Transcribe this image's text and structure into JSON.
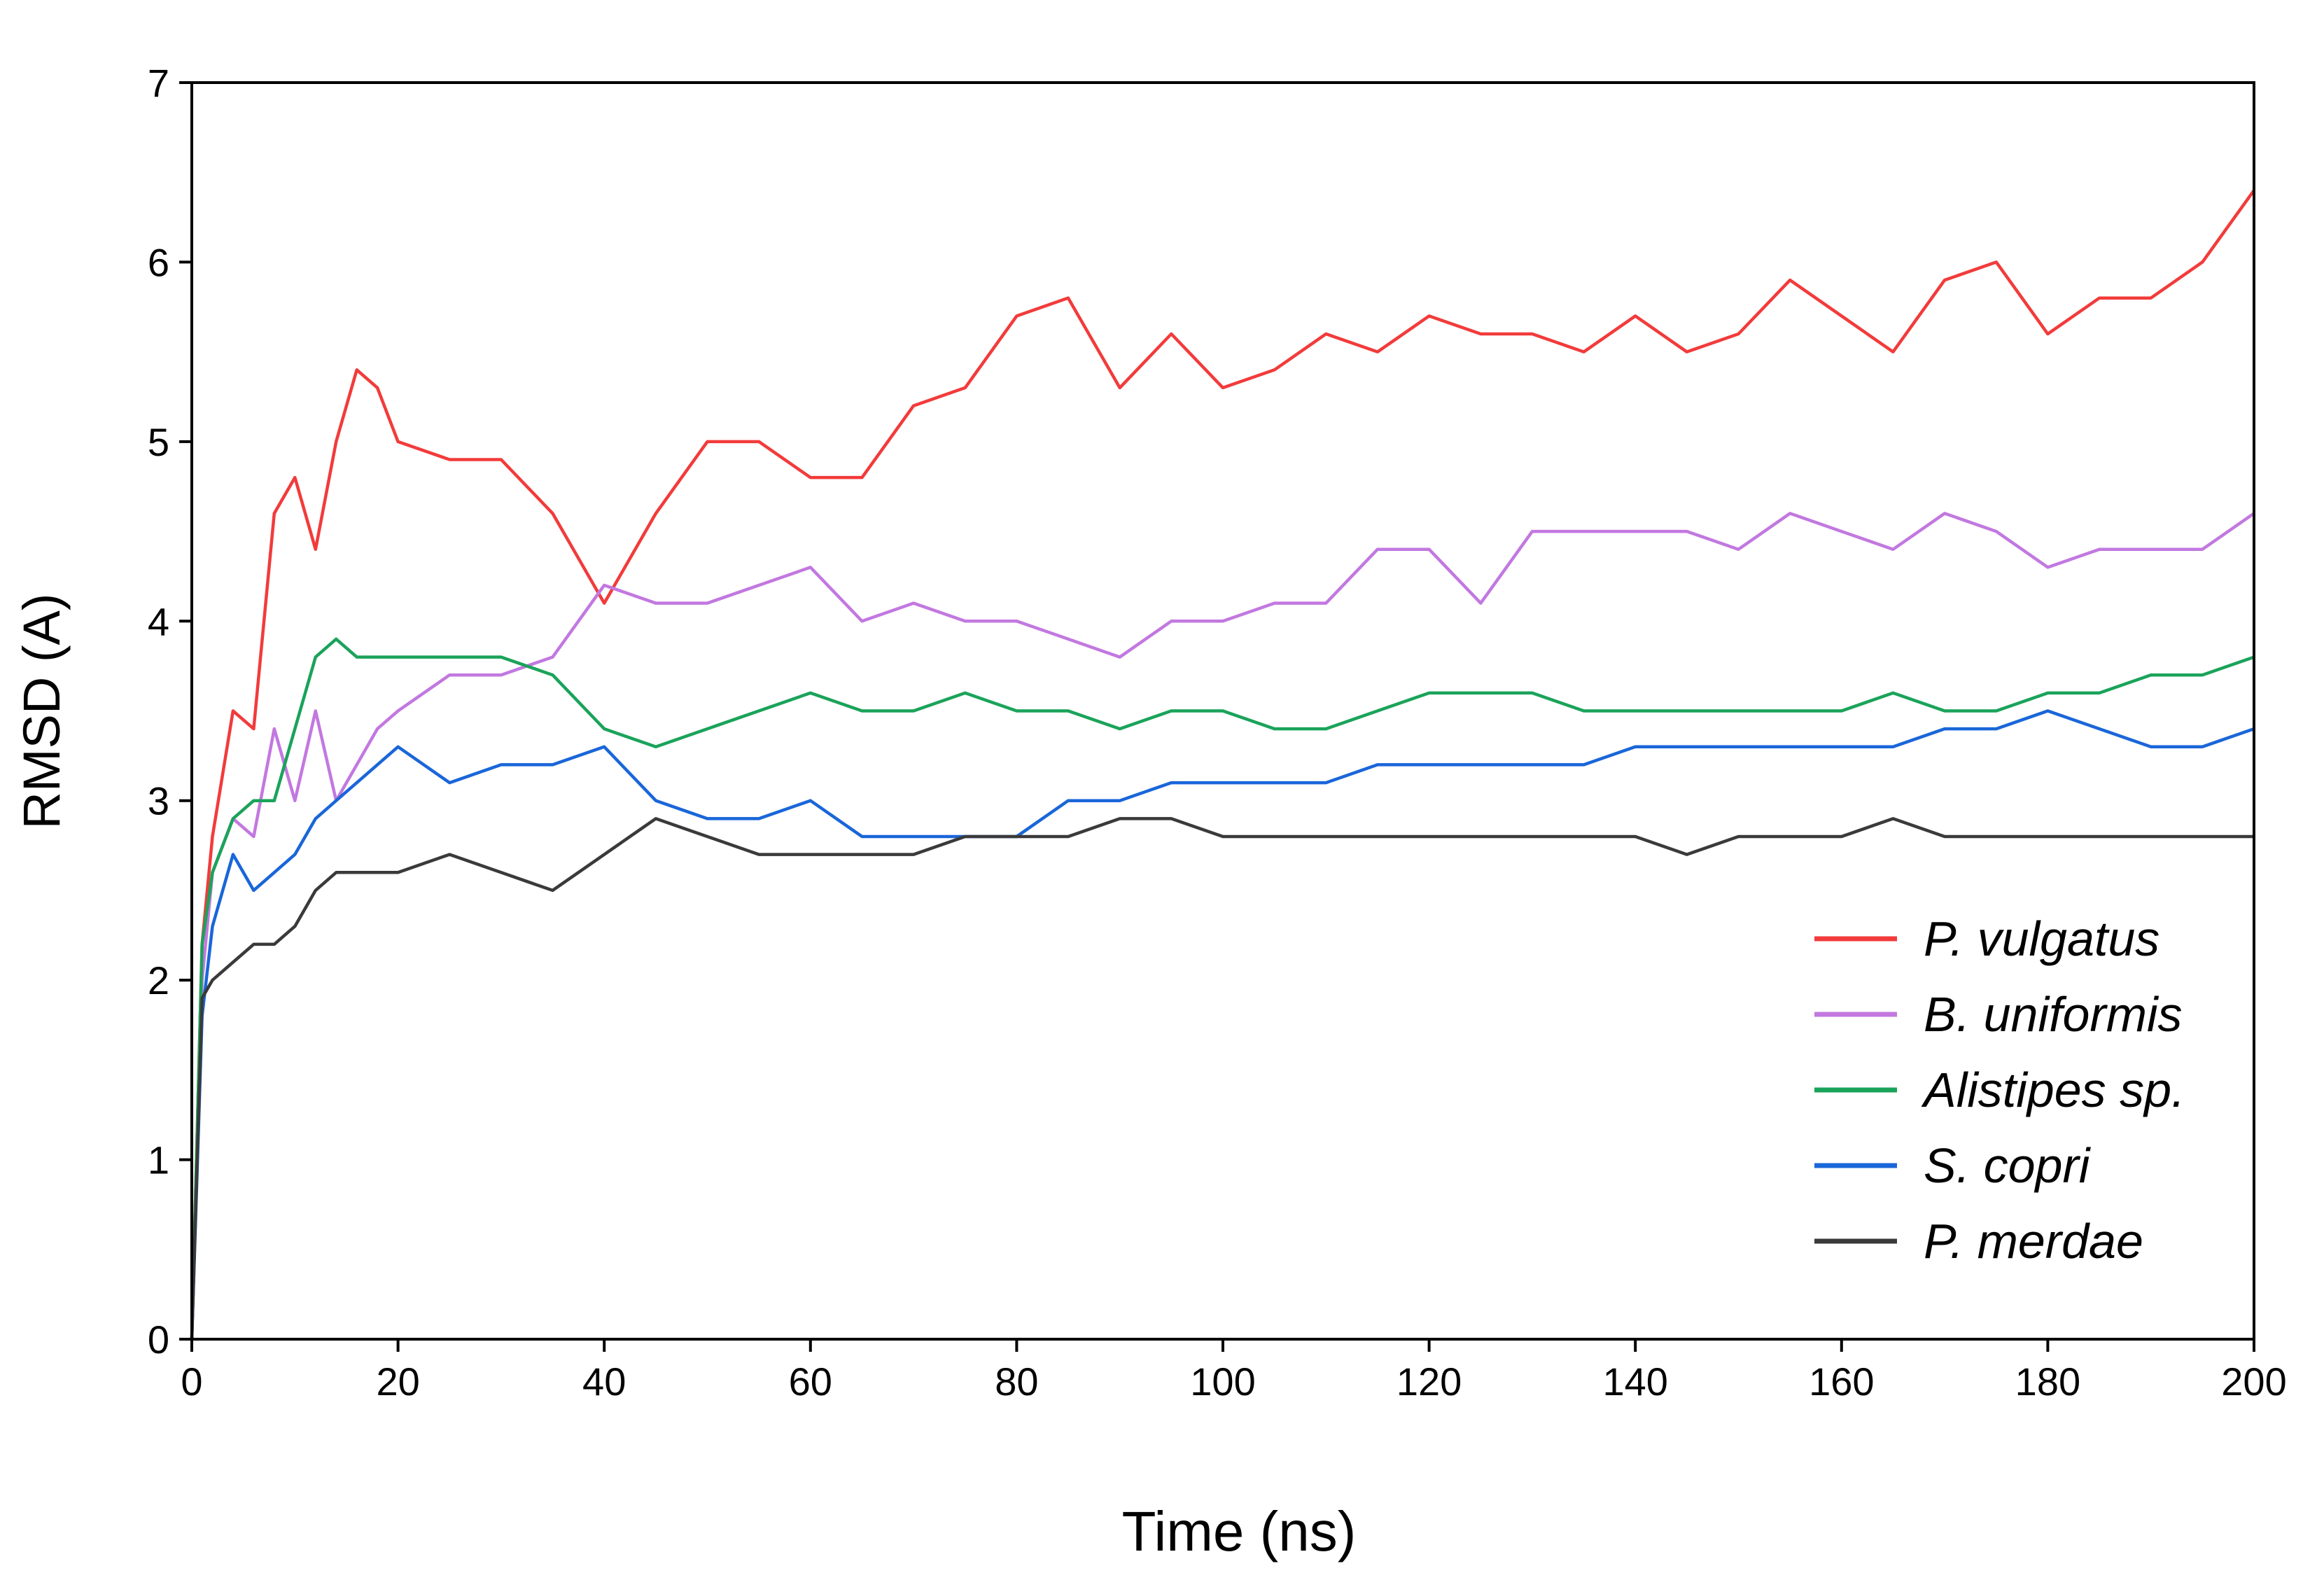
{
  "chart_data": {
    "type": "line",
    "xlabel": "Time (ns)",
    "ylabel": "RMSD (A)",
    "x": [
      0,
      1,
      2,
      4,
      6,
      8,
      10,
      12,
      14,
      16,
      18,
      20,
      25,
      30,
      35,
      40,
      45,
      50,
      55,
      60,
      65,
      70,
      75,
      80,
      85,
      90,
      95,
      100,
      105,
      110,
      115,
      120,
      125,
      130,
      135,
      140,
      145,
      150,
      155,
      160,
      165,
      170,
      175,
      180,
      185,
      190,
      195,
      200
    ],
    "series": [
      {
        "name": "P. vulgatus",
        "color": "#f23b3b",
        "values": [
          0,
          2.2,
          2.8,
          3.5,
          3.4,
          4.6,
          4.8,
          4.4,
          5.0,
          5.4,
          5.3,
          5.0,
          4.9,
          4.9,
          4.6,
          4.1,
          4.6,
          5.0,
          5.0,
          4.8,
          4.8,
          5.2,
          5.3,
          5.7,
          5.8,
          5.3,
          5.6,
          5.3,
          5.4,
          5.6,
          5.5,
          5.7,
          5.6,
          5.6,
          5.5,
          5.7,
          5.5,
          5.6,
          5.9,
          5.7,
          5.5,
          5.9,
          6.0,
          5.6,
          5.8,
          5.8,
          6.0,
          6.4
        ]
      },
      {
        "name": "B. uniformis",
        "color": "#c278e0",
        "values": [
          0,
          2.0,
          2.6,
          2.9,
          2.8,
          3.4,
          3.0,
          3.5,
          3.0,
          3.2,
          3.4,
          3.5,
          3.7,
          3.7,
          3.8,
          4.2,
          4.1,
          4.1,
          4.2,
          4.3,
          4.0,
          4.1,
          4.0,
          4.0,
          3.9,
          3.8,
          4.0,
          4.0,
          4.1,
          4.1,
          4.4,
          4.4,
          4.1,
          4.5,
          4.5,
          4.5,
          4.5,
          4.4,
          4.6,
          4.5,
          4.4,
          4.6,
          4.5,
          4.3,
          4.4,
          4.4,
          4.4,
          4.6
        ]
      },
      {
        "name": "Alistipes sp.",
        "color": "#1aa35a",
        "values": [
          0,
          2.2,
          2.6,
          2.9,
          3.0,
          3.0,
          3.4,
          3.8,
          3.9,
          3.8,
          3.8,
          3.8,
          3.8,
          3.8,
          3.7,
          3.4,
          3.3,
          3.4,
          3.5,
          3.6,
          3.5,
          3.5,
          3.6,
          3.5,
          3.5,
          3.4,
          3.5,
          3.5,
          3.4,
          3.4,
          3.5,
          3.6,
          3.6,
          3.6,
          3.5,
          3.5,
          3.5,
          3.5,
          3.5,
          3.5,
          3.6,
          3.5,
          3.5,
          3.6,
          3.6,
          3.7,
          3.7,
          3.8
        ]
      },
      {
        "name": "S. copri",
        "color": "#1a66d9",
        "values": [
          0,
          1.8,
          2.3,
          2.7,
          2.5,
          2.6,
          2.7,
          2.9,
          3.0,
          3.1,
          3.2,
          3.3,
          3.1,
          3.2,
          3.2,
          3.3,
          3.0,
          2.9,
          2.9,
          3.0,
          2.8,
          2.8,
          2.8,
          2.8,
          3.0,
          3.0,
          3.1,
          3.1,
          3.1,
          3.1,
          3.2,
          3.2,
          3.2,
          3.2,
          3.2,
          3.3,
          3.3,
          3.3,
          3.3,
          3.3,
          3.3,
          3.4,
          3.4,
          3.5,
          3.4,
          3.3,
          3.3,
          3.4
        ]
      },
      {
        "name": "P. merdae",
        "color": "#3a3a3a",
        "values": [
          0,
          1.9,
          2.0,
          2.1,
          2.2,
          2.2,
          2.3,
          2.5,
          2.6,
          2.6,
          2.6,
          2.6,
          2.7,
          2.6,
          2.5,
          2.7,
          2.9,
          2.8,
          2.7,
          2.7,
          2.7,
          2.7,
          2.8,
          2.8,
          2.8,
          2.9,
          2.9,
          2.8,
          2.8,
          2.8,
          2.8,
          2.8,
          2.8,
          2.8,
          2.8,
          2.8,
          2.7,
          2.8,
          2.8,
          2.8,
          2.9,
          2.8,
          2.8,
          2.8,
          2.8,
          2.8,
          2.8,
          2.8
        ]
      }
    ],
    "xlim": [
      0,
      200
    ],
    "xticks": [
      0,
      20,
      40,
      60,
      80,
      100,
      120,
      140,
      160,
      180,
      200
    ],
    "ylim": [
      0,
      7
    ],
    "yticks": [
      0,
      1,
      2,
      3,
      4,
      5,
      6,
      7
    ],
    "legend": "lower right"
  }
}
